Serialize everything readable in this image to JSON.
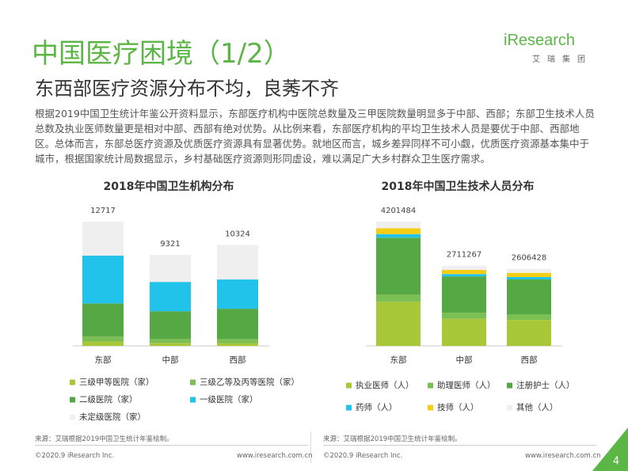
{
  "header": {
    "title": "中国医疗困境（1/2）",
    "subtitle": "东西部医疗资源分布不均，良莠不齐",
    "logo": "iResearch",
    "logo_sub": "艾瑞集团"
  },
  "paragraph": "根据2019中国卫生统计年鉴公开资料显示，东部医疗机构中医院总数量及三甲医院数量明显多于中部、西部；东部卫生技术人员总数及执业医师数量更是相对中部、西部有绝对优势。从比例来看，东部医疗机构的平均卫生技术人员是要优于中部、西部地区。总体而言，东部总医疗资源及优质医疗资源具有显著优势。就地区而言，城乡差异同样不可小觑，优质医疗资源基本集中于城市，根据国家统计局数据显示，乡村基础医疗资源则形同虚设，难以满足广大乡村群众卫生医疗需求。",
  "chart_data": [
    {
      "type": "stacked_bar",
      "title": "2018年中国卫生机构分布",
      "categories": [
        "东部",
        "中部",
        "西部"
      ],
      "totals": [
        12717,
        9321,
        10324
      ],
      "series": [
        {
          "name": "三级甲等医院（家）",
          "color": "#a8c83a",
          "values": [
            450,
            300,
            280
          ]
        },
        {
          "name": "三级乙等及丙等医院（家）",
          "color": "#7cbf54",
          "values": [
            500,
            400,
            420
          ]
        },
        {
          "name": "二级医院（家）",
          "color": "#55a844",
          "values": [
            3400,
            2850,
            3100
          ]
        },
        {
          "name": "一级医院（家）",
          "color": "#22c3ea",
          "values": [
            4900,
            3000,
            3000
          ]
        },
        {
          "name": "未定级医院（家）",
          "color": "#efefef",
          "values": [
            3467,
            2771,
            3524
          ]
        }
      ],
      "source": "来源：艾瑞根据2019中国卫生统计年鉴绘制。"
    },
    {
      "type": "stacked_bar",
      "title": "2018年中国卫生技术人员分布",
      "categories": [
        "东部",
        "中部",
        "西部"
      ],
      "totals": [
        4201484,
        2711267,
        2606428
      ],
      "series": [
        {
          "name": "执业医师（人）",
          "color": "#a8c83a",
          "values": [
            1490000,
            920000,
            880000
          ]
        },
        {
          "name": "助理医师（人）",
          "color": "#7cbf54",
          "values": [
            250000,
            200000,
            190000
          ]
        },
        {
          "name": "注册护士（人）",
          "color": "#55a844",
          "values": [
            1920000,
            1230000,
            1180000
          ]
        },
        {
          "name": "药师（人）",
          "color": "#22c3ea",
          "values": [
            120000,
            80000,
            80000
          ]
        },
        {
          "name": "技师（人）",
          "color": "#f5cd12",
          "values": [
            200000,
            140000,
            140000
          ]
        },
        {
          "name": "其他（人）",
          "color": "#efefef",
          "values": [
            221484,
            141267,
            136428
          ]
        }
      ],
      "source": "来源：艾瑞根据2019中国卫生统计年鉴绘制。"
    }
  ],
  "footer": {
    "copyright": "©2020.9 iResearch Inc.",
    "url": "www.iresearch.com.cn",
    "page": "4"
  }
}
